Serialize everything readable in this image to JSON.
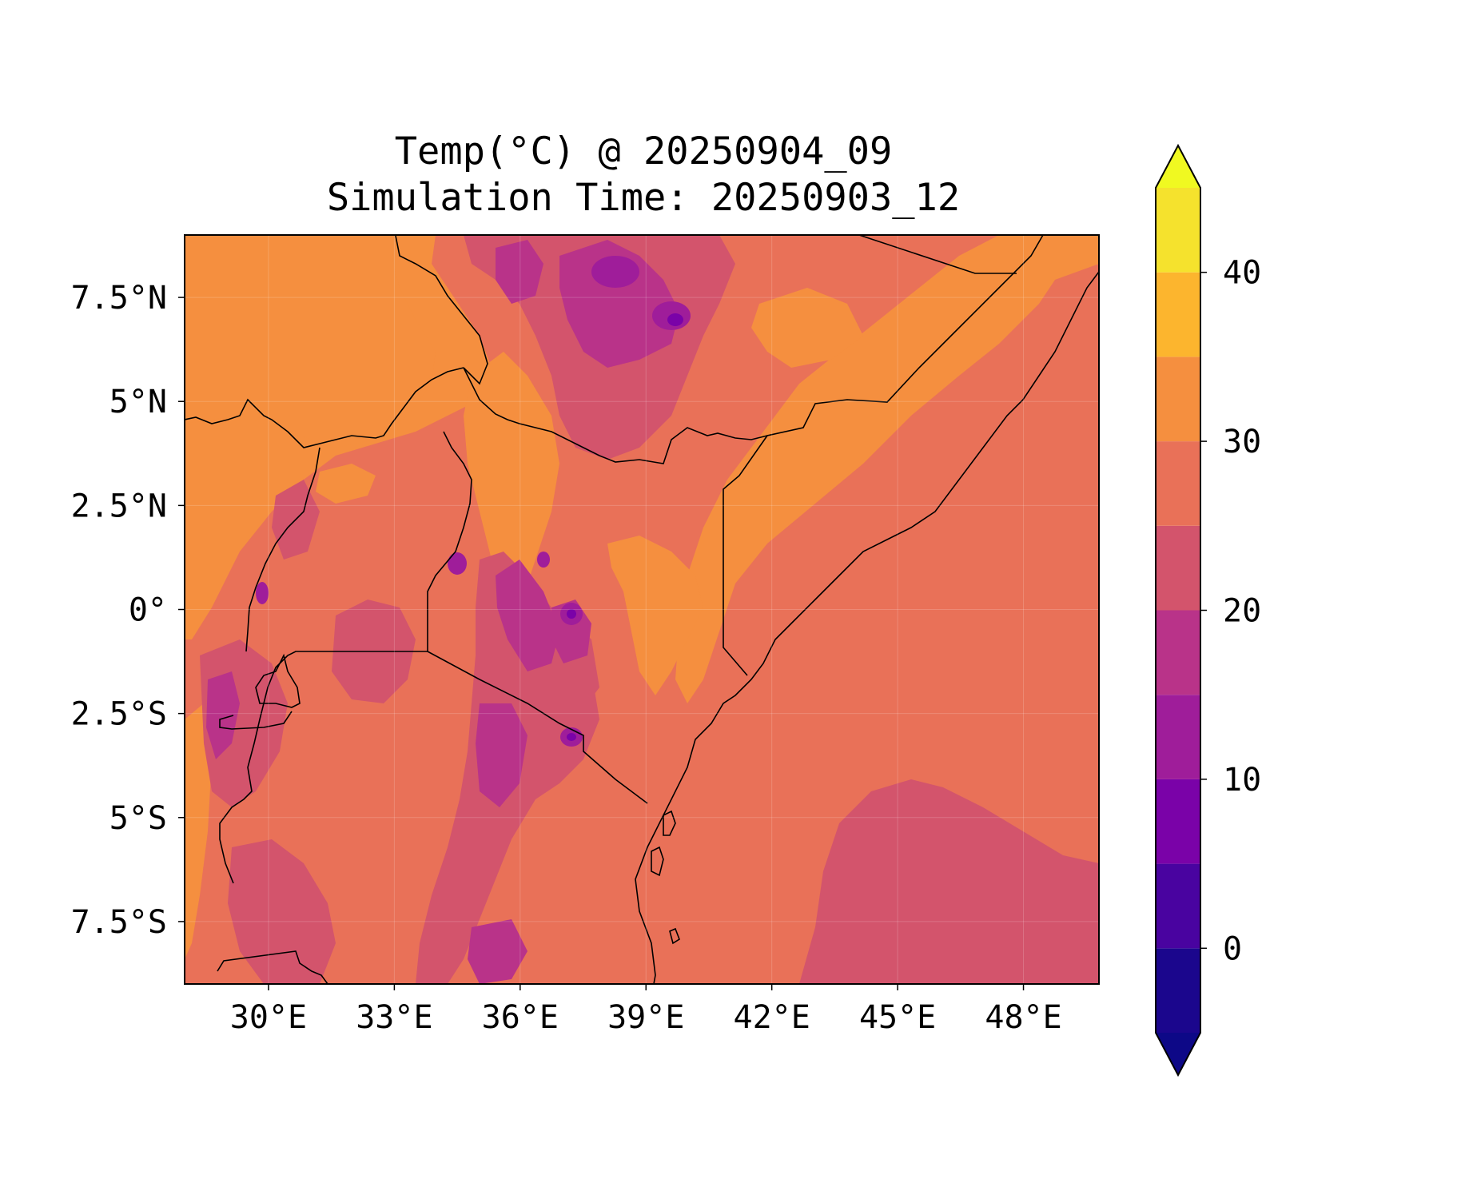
{
  "title": {
    "line1": "Temp(°C) @ 20250904_09",
    "line2": "Simulation Time: 20250903_12"
  },
  "map": {
    "lon_range": [
      28.0,
      49.8
    ],
    "lat_range": [
      -9.0,
      9.0
    ],
    "x_ticks": [
      {
        "lon": 30,
        "label": "30°E"
      },
      {
        "lon": 33,
        "label": "33°E"
      },
      {
        "lon": 36,
        "label": "36°E"
      },
      {
        "lon": 39,
        "label": "39°E"
      },
      {
        "lon": 42,
        "label": "42°E"
      },
      {
        "lon": 45,
        "label": "45°E"
      },
      {
        "lon": 48,
        "label": "48°E"
      }
    ],
    "y_ticks": [
      {
        "lat": 7.5,
        "label": "7.5°N"
      },
      {
        "lat": 5,
        "label": "5°N"
      },
      {
        "lat": 2.5,
        "label": "2.5°N"
      },
      {
        "lat": 0,
        "label": "0°"
      },
      {
        "lat": -2.5,
        "label": "2.5°S"
      },
      {
        "lat": -5,
        "label": "5°S"
      },
      {
        "lat": -7.5,
        "label": "7.5°S"
      }
    ],
    "colors": {
      "below_0": "#1b068d",
      "0_to_5": "#4903a0",
      "5_to_10": "#7a02a8",
      "10_to_15": "#9f1d9a",
      "15_to_20": "#b93389",
      "20_to_25": "#d3546c",
      "25_to_30": "#e97158",
      "30_to_35": "#f58f3f",
      "35_to_40": "#fcb52e",
      "40_to_45": "#f5e22d",
      "above_45": "#f0f921"
    }
  },
  "colorbar": {
    "levels": [
      -5,
      0,
      5,
      10,
      15,
      20,
      25,
      30,
      35,
      40,
      45
    ],
    "tick_labels": [
      {
        "value": 0,
        "label": "0"
      },
      {
        "value": 10,
        "label": "10"
      },
      {
        "value": 20,
        "label": "20"
      },
      {
        "value": 30,
        "label": "30"
      },
      {
        "value": 40,
        "label": "40"
      }
    ],
    "segment_colors": [
      "#1b068d",
      "#4903a0",
      "#7a02a8",
      "#9f1d9a",
      "#b93389",
      "#d3546c",
      "#e97158",
      "#f58f3f",
      "#fcb52e",
      "#f5e22d"
    ],
    "extend_min_color": "#0d0887",
    "extend_max_color": "#f0f921"
  }
}
